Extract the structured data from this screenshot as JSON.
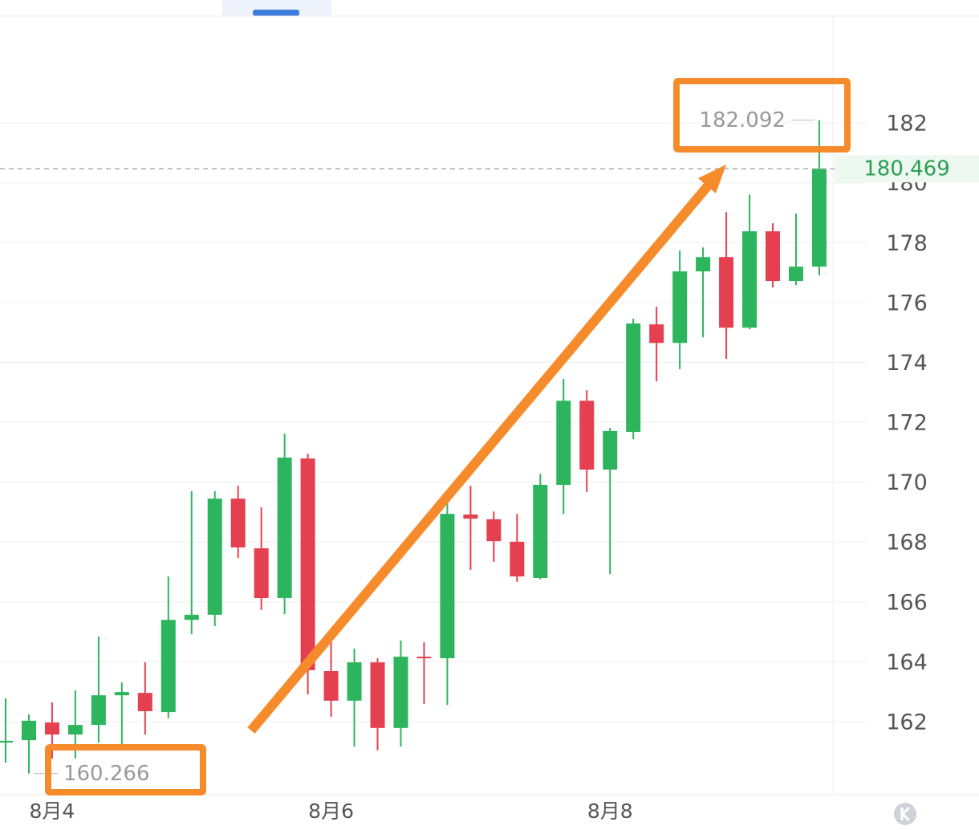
{
  "chart_data": {
    "type": "candlestick",
    "categories": [
      null,
      null,
      "8月4",
      null,
      null,
      null,
      null,
      null,
      null,
      null,
      null,
      null,
      null,
      null,
      "8月6",
      null,
      null,
      null,
      null,
      null,
      null,
      null,
      null,
      null,
      null,
      null,
      "8月8",
      null,
      null,
      null,
      null,
      null,
      null,
      null,
      null,
      null
    ],
    "open": [
      161.3,
      161.38,
      161.97,
      161.57,
      161.89,
      162.88,
      162.96,
      162.32,
      165.4,
      165.57,
      169.45,
      167.79,
      166.13,
      170.79,
      163.69,
      162.7,
      163.98,
      161.79,
      164.17,
      164.12,
      168.92,
      168.76,
      168.01,
      166.8,
      169.91,
      172.72,
      170.42,
      171.68,
      175.27,
      174.65,
      177.04,
      177.52,
      175.16,
      178.38,
      176.72,
      177.2
    ],
    "high": [
      162.78,
      162.24,
      162.64,
      163.05,
      164.84,
      163.31,
      163.98,
      166.85,
      169.7,
      169.7,
      169.88,
      169.16,
      171.62,
      170.95,
      164.65,
      164.44,
      164.12,
      164.71,
      164.65,
      169.48,
      169.88,
      169.02,
      168.94,
      170.28,
      173.45,
      173.07,
      171.81,
      175.46,
      175.86,
      177.74,
      177.84,
      179.02,
      179.61,
      178.65,
      178.97,
      182.092
    ],
    "low": [
      160.63,
      160.266,
      160.77,
      160.77,
      161.3,
      161.17,
      161.57,
      162.11,
      164.92,
      165.19,
      167.47,
      165.73,
      165.59,
      162.91,
      162.16,
      161.17,
      161.04,
      161.17,
      162.59,
      162.56,
      167.07,
      167.34,
      166.67,
      166.75,
      168.94,
      169.67,
      166.93,
      171.44,
      173.37,
      173.77,
      174.84,
      174.12,
      175.11,
      176.5,
      176.58,
      176.91
    ],
    "close": [
      161.36,
      162.03,
      161.57,
      161.89,
      162.88,
      162.99,
      162.35,
      165.4,
      165.57,
      169.45,
      167.82,
      166.13,
      170.82,
      163.72,
      162.7,
      163.98,
      161.79,
      164.17,
      164.12,
      168.94,
      168.78,
      168.03,
      166.85,
      169.91,
      172.72,
      170.42,
      171.71,
      175.3,
      174.65,
      177.04,
      177.52,
      175.16,
      178.38,
      176.72,
      177.2,
      180.469
    ],
    "up_color": "#2db55d",
    "down_color": "#e5404f",
    "ylim": [
      159.56,
      185.57
    ],
    "yticks": [
      162,
      164,
      166,
      168,
      170,
      172,
      174,
      176,
      178,
      180,
      182
    ],
    "grid": true
  }
}
